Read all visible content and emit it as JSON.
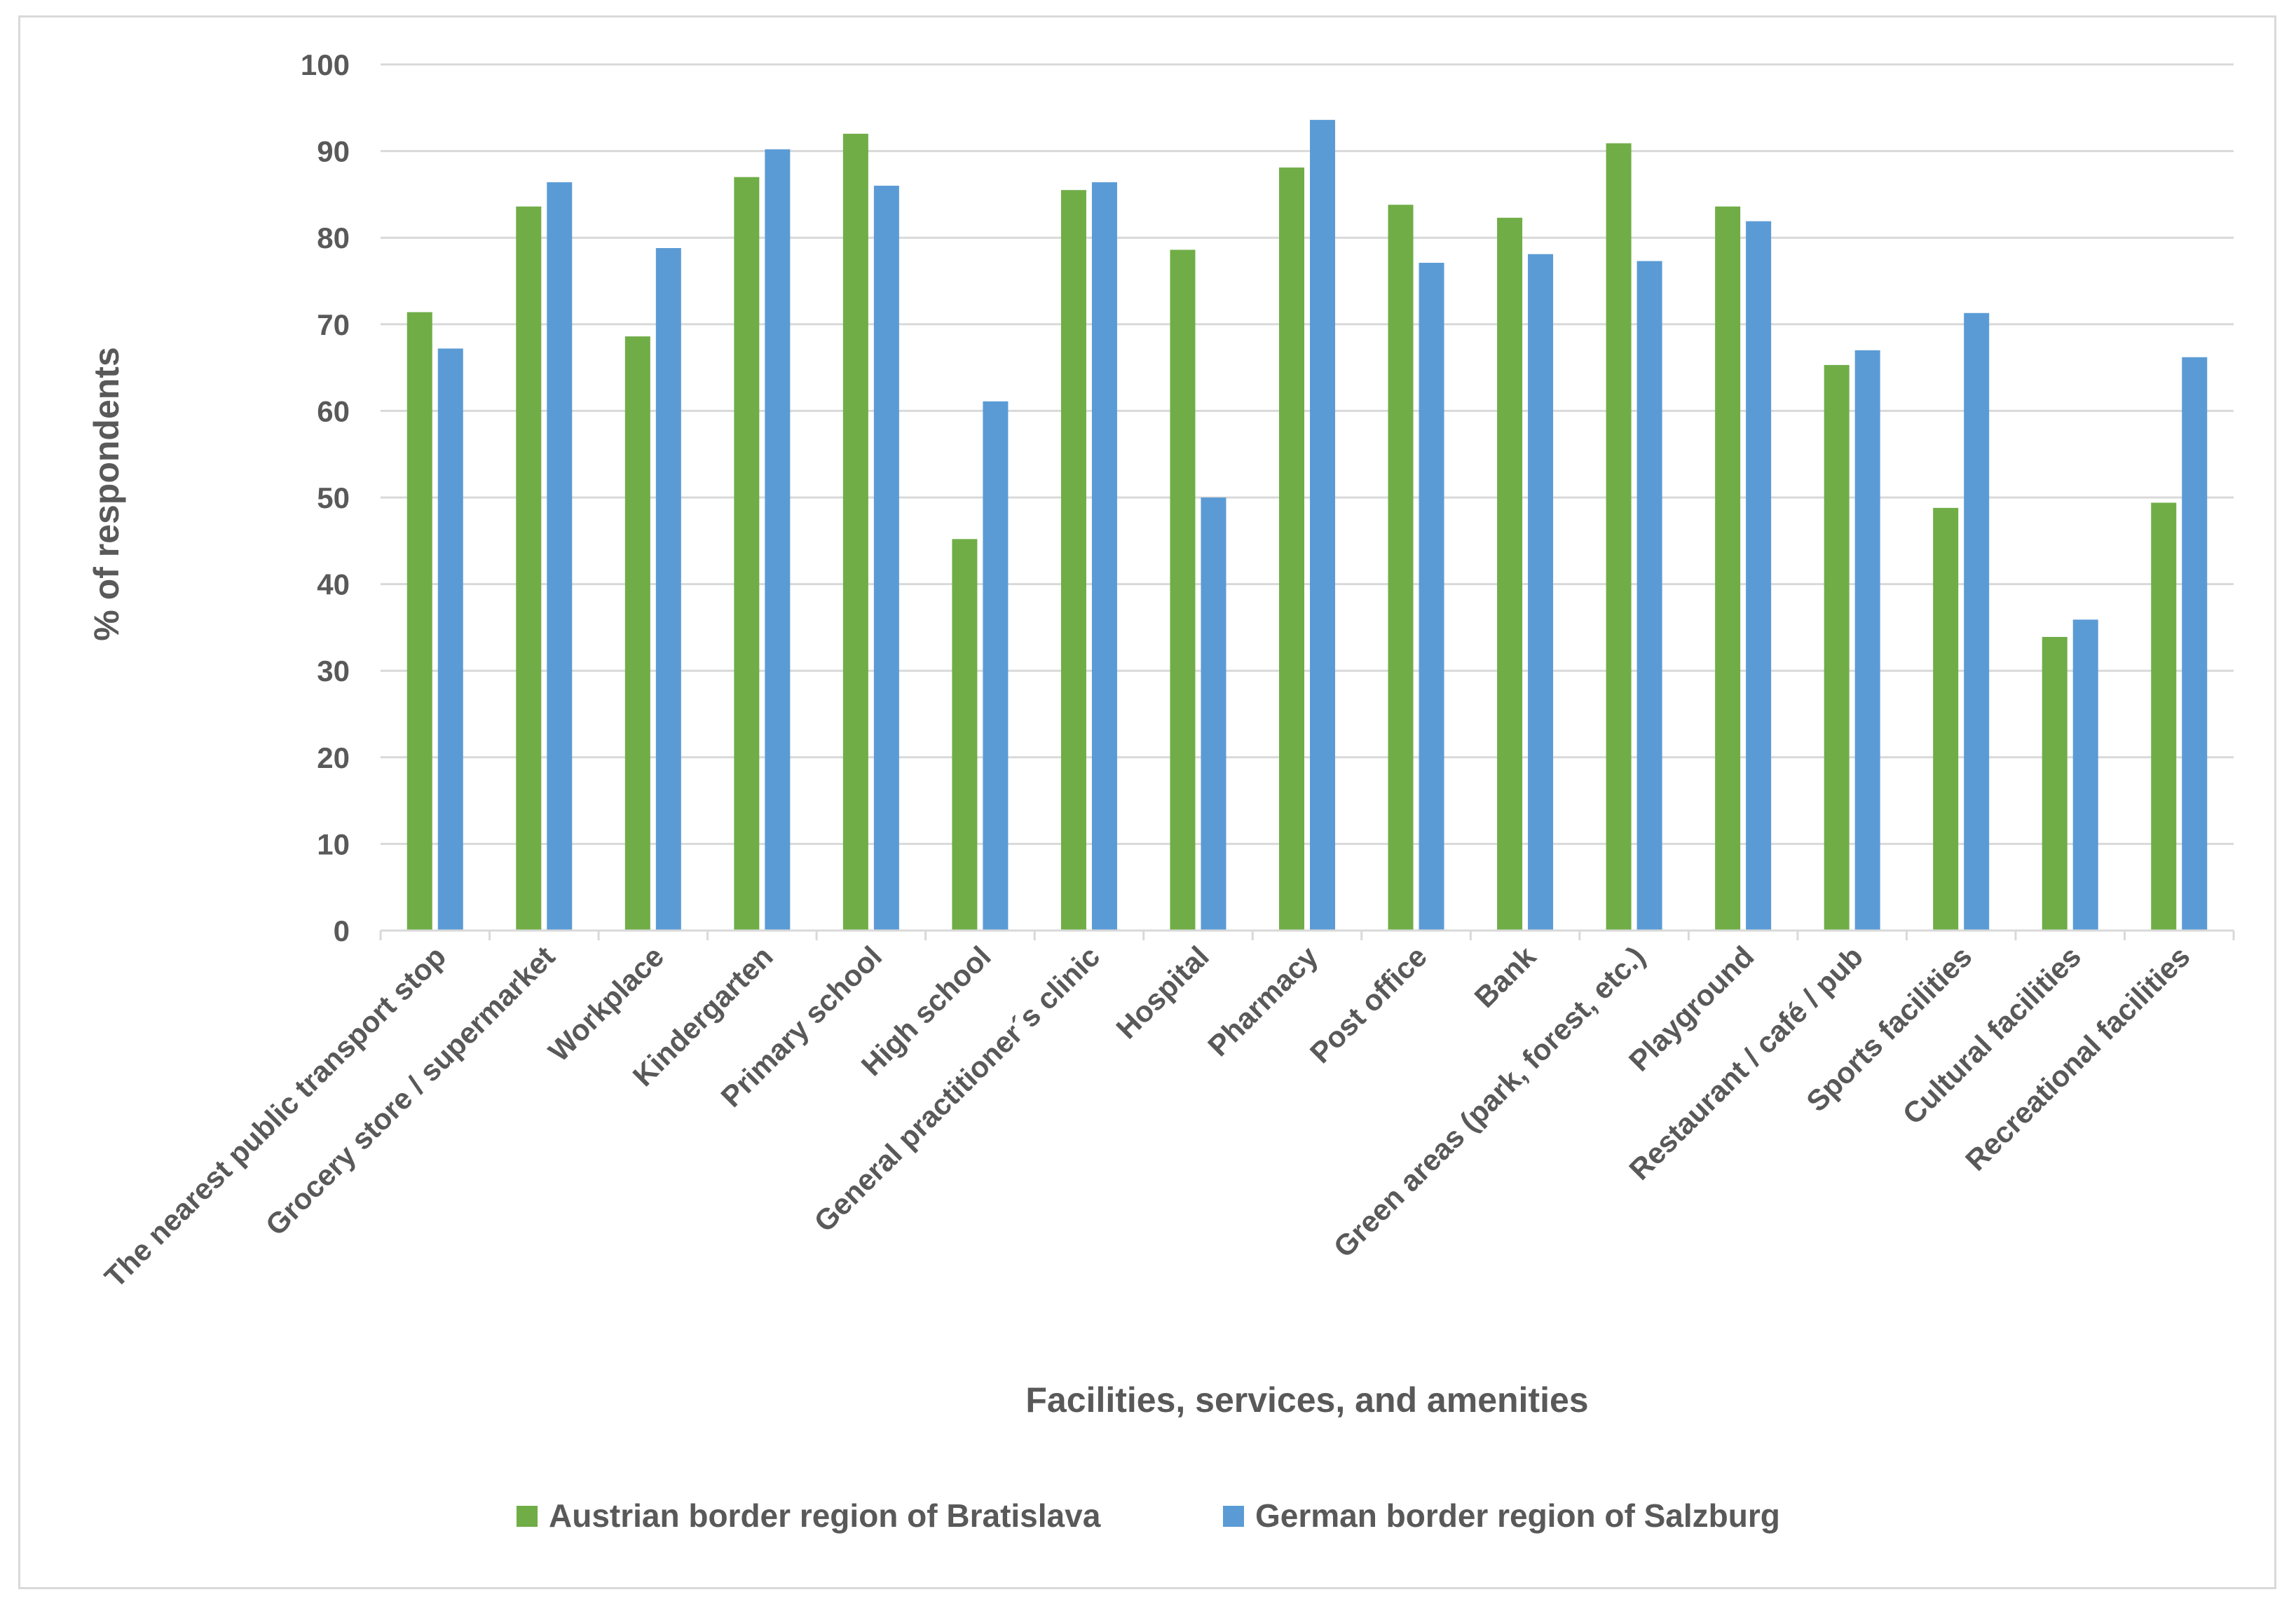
{
  "chart_data": {
    "type": "bar",
    "title": "",
    "xlabel": "Facilities, services, and amenities",
    "ylabel": "% of respondents",
    "ylim": [
      0,
      100
    ],
    "yticks": [
      0,
      10,
      20,
      30,
      40,
      50,
      60,
      70,
      80,
      90,
      100
    ],
    "grid": true,
    "legend_position": "bottom",
    "categories": [
      "The nearest public transport stop",
      "Grocery store / supermarket",
      "Workplace",
      "Kindergarten",
      "Primary school",
      "High school",
      "General practitioner´s clinic",
      "Hospital",
      "Pharmacy",
      "Post office",
      "Bank",
      "Green areas (park, forest, etc.)",
      "Playground",
      "Restaurant / café / pub",
      "Sports facilities",
      "Cultural facilities",
      "Recreational facilities"
    ],
    "series": [
      {
        "name": "Austrian border region of Bratislava",
        "color": "#70ad47",
        "values": [
          71.4,
          83.6,
          68.6,
          87.0,
          92.0,
          45.2,
          85.5,
          78.6,
          88.1,
          83.8,
          82.3,
          90.9,
          83.6,
          65.3,
          48.8,
          33.9,
          49.4
        ]
      },
      {
        "name": "German border region of Salzburg",
        "color": "#5b9bd5",
        "values": [
          67.2,
          86.4,
          78.8,
          90.2,
          86.0,
          61.1,
          86.4,
          50.0,
          93.6,
          77.1,
          78.1,
          77.3,
          81.9,
          67.0,
          71.3,
          35.9,
          66.2
        ]
      }
    ]
  }
}
